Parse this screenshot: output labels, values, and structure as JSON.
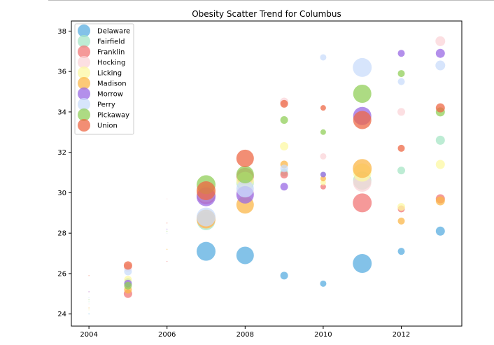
{
  "chart_data": {
    "type": "scatter",
    "title": "Obesity Scatter Trend for Columbus",
    "xlabel": "",
    "ylabel": "",
    "xlim": [
      2003.55,
      2013.55
    ],
    "ylim": [
      23.4,
      38.5
    ],
    "x_ticks": [
      2004,
      2006,
      2008,
      2010,
      2012
    ],
    "y_ticks": [
      24,
      26,
      28,
      30,
      32,
      34,
      36,
      38
    ],
    "grid": false,
    "legend_position": "upper-left",
    "marker_size_encoding": "bubble area varies by point",
    "series": [
      {
        "name": "Delaware",
        "color": "#5aaee0",
        "points": [
          {
            "x": 2004,
            "y": 24.0,
            "s": 1
          },
          {
            "x": 2005,
            "y": 25.6,
            "s": 10
          },
          {
            "x": 2007,
            "y": 27.1,
            "s": 27
          },
          {
            "x": 2008,
            "y": 26.9,
            "s": 25
          },
          {
            "x": 2009,
            "y": 25.9,
            "s": 11
          },
          {
            "x": 2010,
            "y": 25.5,
            "s": 9
          },
          {
            "x": 2011,
            "y": 26.5,
            "s": 27
          },
          {
            "x": 2012,
            "y": 27.1,
            "s": 10
          },
          {
            "x": 2013,
            "y": 28.1,
            "s": 13
          }
        ]
      },
      {
        "name": "Fairfield",
        "color": "#a7e6c6",
        "points": [
          {
            "x": 2004,
            "y": 24.6,
            "s": 1
          },
          {
            "x": 2005,
            "y": 25.5,
            "s": 10
          },
          {
            "x": 2007,
            "y": 28.6,
            "s": 26
          },
          {
            "x": 2008,
            "y": 30.5,
            "s": 25
          },
          {
            "x": 2009,
            "y": 31.0,
            "s": 11
          },
          {
            "x": 2010,
            "y": 30.9,
            "s": 8
          },
          {
            "x": 2011,
            "y": 30.6,
            "s": 26
          },
          {
            "x": 2012,
            "y": 31.1,
            "s": 11
          },
          {
            "x": 2013,
            "y": 32.6,
            "s": 13
          }
        ]
      },
      {
        "name": "Franklin",
        "color": "#f27777",
        "points": [
          {
            "x": 2004,
            "y": 25.1,
            "s": 1
          },
          {
            "x": 2005,
            "y": 25.0,
            "s": 12
          },
          {
            "x": 2006,
            "y": 26.6,
            "s": 1
          },
          {
            "x": 2007,
            "y": 29.9,
            "s": 27
          },
          {
            "x": 2008,
            "y": 30.8,
            "s": 25
          },
          {
            "x": 2009,
            "y": 30.9,
            "s": 11
          },
          {
            "x": 2010,
            "y": 30.3,
            "s": 8
          },
          {
            "x": 2011,
            "y": 29.5,
            "s": 27
          },
          {
            "x": 2012,
            "y": 29.2,
            "s": 10
          },
          {
            "x": 2013,
            "y": 29.7,
            "s": 13
          }
        ]
      },
      {
        "name": "Hocking",
        "color": "#fbd4d8",
        "points": [
          {
            "x": 2004,
            "y": 24.5,
            "s": 1
          },
          {
            "x": 2005,
            "y": 26.3,
            "s": 12
          },
          {
            "x": 2006,
            "y": 29.7,
            "s": 1
          },
          {
            "x": 2007,
            "y": 28.7,
            "s": 27
          },
          {
            "x": 2008,
            "y": 30.0,
            "s": 25
          },
          {
            "x": 2009,
            "y": 34.5,
            "s": 12
          },
          {
            "x": 2010,
            "y": 31.8,
            "s": 9
          },
          {
            "x": 2011,
            "y": 30.5,
            "s": 26
          },
          {
            "x": 2012,
            "y": 34.0,
            "s": 11
          },
          {
            "x": 2013,
            "y": 37.5,
            "s": 14
          }
        ]
      },
      {
        "name": "Licking",
        "color": "#fcf8a3",
        "points": [
          {
            "x": 2004,
            "y": 24.2,
            "s": 1
          },
          {
            "x": 2005,
            "y": 25.7,
            "s": 11
          },
          {
            "x": 2006,
            "y": 27.2,
            "s": 1
          },
          {
            "x": 2007,
            "y": 30.0,
            "s": 27
          },
          {
            "x": 2008,
            "y": 30.6,
            "s": 25
          },
          {
            "x": 2009,
            "y": 32.3,
            "s": 12
          },
          {
            "x": 2010,
            "y": 30.5,
            "s": 8
          },
          {
            "x": 2011,
            "y": 31.0,
            "s": 26
          },
          {
            "x": 2012,
            "y": 29.3,
            "s": 11
          },
          {
            "x": 2013,
            "y": 31.4,
            "s": 13
          }
        ]
      },
      {
        "name": "Madison",
        "color": "#fbb74a",
        "points": [
          {
            "x": 2004,
            "y": 24.3,
            "s": 1
          },
          {
            "x": 2005,
            "y": 25.2,
            "s": 11
          },
          {
            "x": 2006,
            "y": 27.2,
            "s": 1
          },
          {
            "x": 2007,
            "y": 28.7,
            "s": 27
          },
          {
            "x": 2008,
            "y": 29.4,
            "s": 25
          },
          {
            "x": 2009,
            "y": 31.4,
            "s": 11
          },
          {
            "x": 2010,
            "y": 30.7,
            "s": 8
          },
          {
            "x": 2011,
            "y": 31.2,
            "s": 27
          },
          {
            "x": 2012,
            "y": 28.6,
            "s": 10
          },
          {
            "x": 2013,
            "y": 29.6,
            "s": 13
          }
        ]
      },
      {
        "name": "Morrow",
        "color": "#9a6ae4",
        "points": [
          {
            "x": 2004,
            "y": 25.1,
            "s": 1
          },
          {
            "x": 2005,
            "y": 25.5,
            "s": 11
          },
          {
            "x": 2006,
            "y": 28.2,
            "s": 1
          },
          {
            "x": 2007,
            "y": 29.8,
            "s": 27
          },
          {
            "x": 2008,
            "y": 29.9,
            "s": 25
          },
          {
            "x": 2009,
            "y": 30.3,
            "s": 11
          },
          {
            "x": 2010,
            "y": 30.9,
            "s": 8
          },
          {
            "x": 2011,
            "y": 33.8,
            "s": 26
          },
          {
            "x": 2012,
            "y": 36.9,
            "s": 10
          },
          {
            "x": 2013,
            "y": 36.9,
            "s": 13
          }
        ]
      },
      {
        "name": "Perry",
        "color": "#c9dcfb",
        "points": [
          {
            "x": 2004,
            "y": 24.8,
            "s": 1
          },
          {
            "x": 2005,
            "y": 26.1,
            "s": 11
          },
          {
            "x": 2006,
            "y": 28.0,
            "s": 1
          },
          {
            "x": 2007,
            "y": 28.8,
            "s": 27
          },
          {
            "x": 2008,
            "y": 30.2,
            "s": 25
          },
          {
            "x": 2009,
            "y": 31.2,
            "s": 11
          },
          {
            "x": 2010,
            "y": 36.7,
            "s": 9
          },
          {
            "x": 2011,
            "y": 36.2,
            "s": 27
          },
          {
            "x": 2012,
            "y": 35.5,
            "s": 10
          },
          {
            "x": 2013,
            "y": 36.3,
            "s": 14
          }
        ]
      },
      {
        "name": "Pickaway",
        "color": "#92cf5a",
        "points": [
          {
            "x": 2004,
            "y": 24.7,
            "s": 1
          },
          {
            "x": 2005,
            "y": 25.4,
            "s": 11
          },
          {
            "x": 2006,
            "y": 28.1,
            "s": 1
          },
          {
            "x": 2007,
            "y": 30.4,
            "s": 27
          },
          {
            "x": 2008,
            "y": 30.9,
            "s": 25
          },
          {
            "x": 2009,
            "y": 33.6,
            "s": 11
          },
          {
            "x": 2010,
            "y": 33.0,
            "s": 8
          },
          {
            "x": 2011,
            "y": 34.9,
            "s": 26
          },
          {
            "x": 2012,
            "y": 35.9,
            "s": 10
          },
          {
            "x": 2013,
            "y": 34.0,
            "s": 13
          }
        ]
      },
      {
        "name": "Union",
        "color": "#ee6845",
        "points": [
          {
            "x": 2004,
            "y": 25.9,
            "s": 1
          },
          {
            "x": 2005,
            "y": 26.4,
            "s": 12
          },
          {
            "x": 2006,
            "y": 28.5,
            "s": 1
          },
          {
            "x": 2007,
            "y": 30.1,
            "s": 27
          },
          {
            "x": 2008,
            "y": 31.7,
            "s": 25
          },
          {
            "x": 2009,
            "y": 34.4,
            "s": 11
          },
          {
            "x": 2010,
            "y": 34.2,
            "s": 8
          },
          {
            "x": 2011,
            "y": 33.6,
            "s": 26
          },
          {
            "x": 2012,
            "y": 32.2,
            "s": 10
          },
          {
            "x": 2013,
            "y": 34.2,
            "s": 13
          }
        ]
      }
    ]
  }
}
